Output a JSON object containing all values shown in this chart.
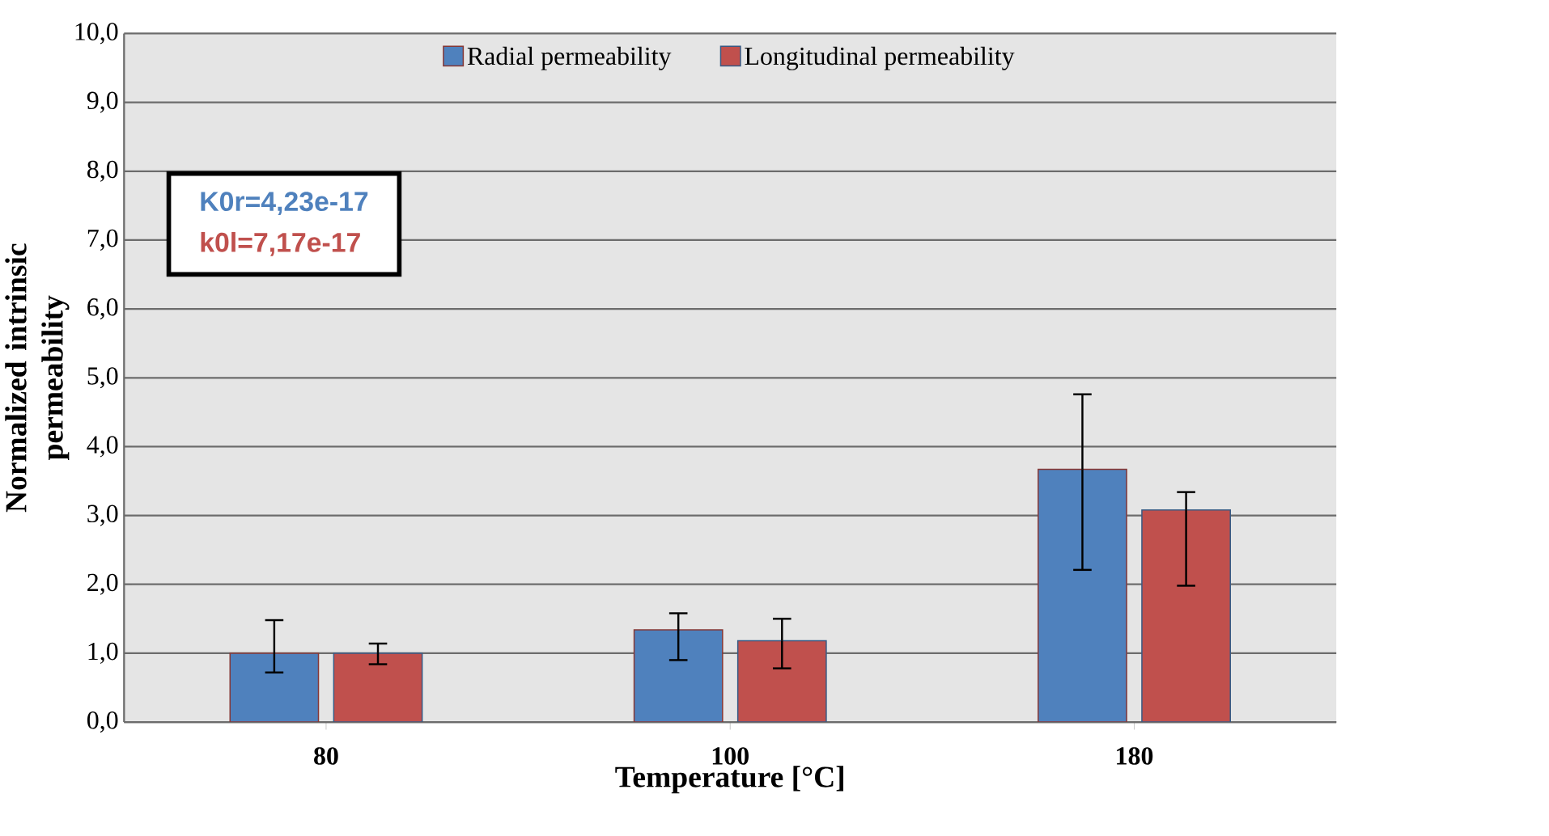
{
  "chart_data": {
    "type": "bar",
    "xlabel": "Temperature [°C]",
    "ylabel": "Normalized intrinsic permeability",
    "categories": [
      "80",
      "100",
      "180"
    ],
    "series": [
      {
        "name": "Radial permeability",
        "color": "#4f81bd",
        "values": [
          1.0,
          1.34,
          3.67
        ],
        "errors": [
          [
            0.72,
            1.48
          ],
          [
            0.9,
            1.58
          ],
          [
            2.21,
            4.76
          ]
        ]
      },
      {
        "name": "Longitudinal permeability",
        "color": "#c0504d",
        "values": [
          1.0,
          1.18,
          3.08
        ],
        "errors": [
          [
            0.84,
            1.14
          ],
          [
            0.78,
            1.5
          ],
          [
            1.98,
            3.34
          ]
        ]
      }
    ],
    "ylim": [
      0,
      10
    ],
    "yticks": [
      {
        "value": 0,
        "label": "0,0"
      },
      {
        "value": 1,
        "label": "1,0"
      },
      {
        "value": 2,
        "label": "2,0"
      },
      {
        "value": 3,
        "label": "3,0"
      },
      {
        "value": 4,
        "label": "4,0"
      },
      {
        "value": 5,
        "label": "5,0"
      },
      {
        "value": 6,
        "label": "6,0"
      },
      {
        "value": 7,
        "label": "7,0"
      },
      {
        "value": 8,
        "label": "8,0"
      },
      {
        "value": 9,
        "label": "9,0"
      },
      {
        "value": 10,
        "label": "10,0"
      }
    ],
    "annotations": [
      "K0r=4,23e-17",
      "k0l=7,17e-17"
    ],
    "grid": "y",
    "legend": "top"
  }
}
